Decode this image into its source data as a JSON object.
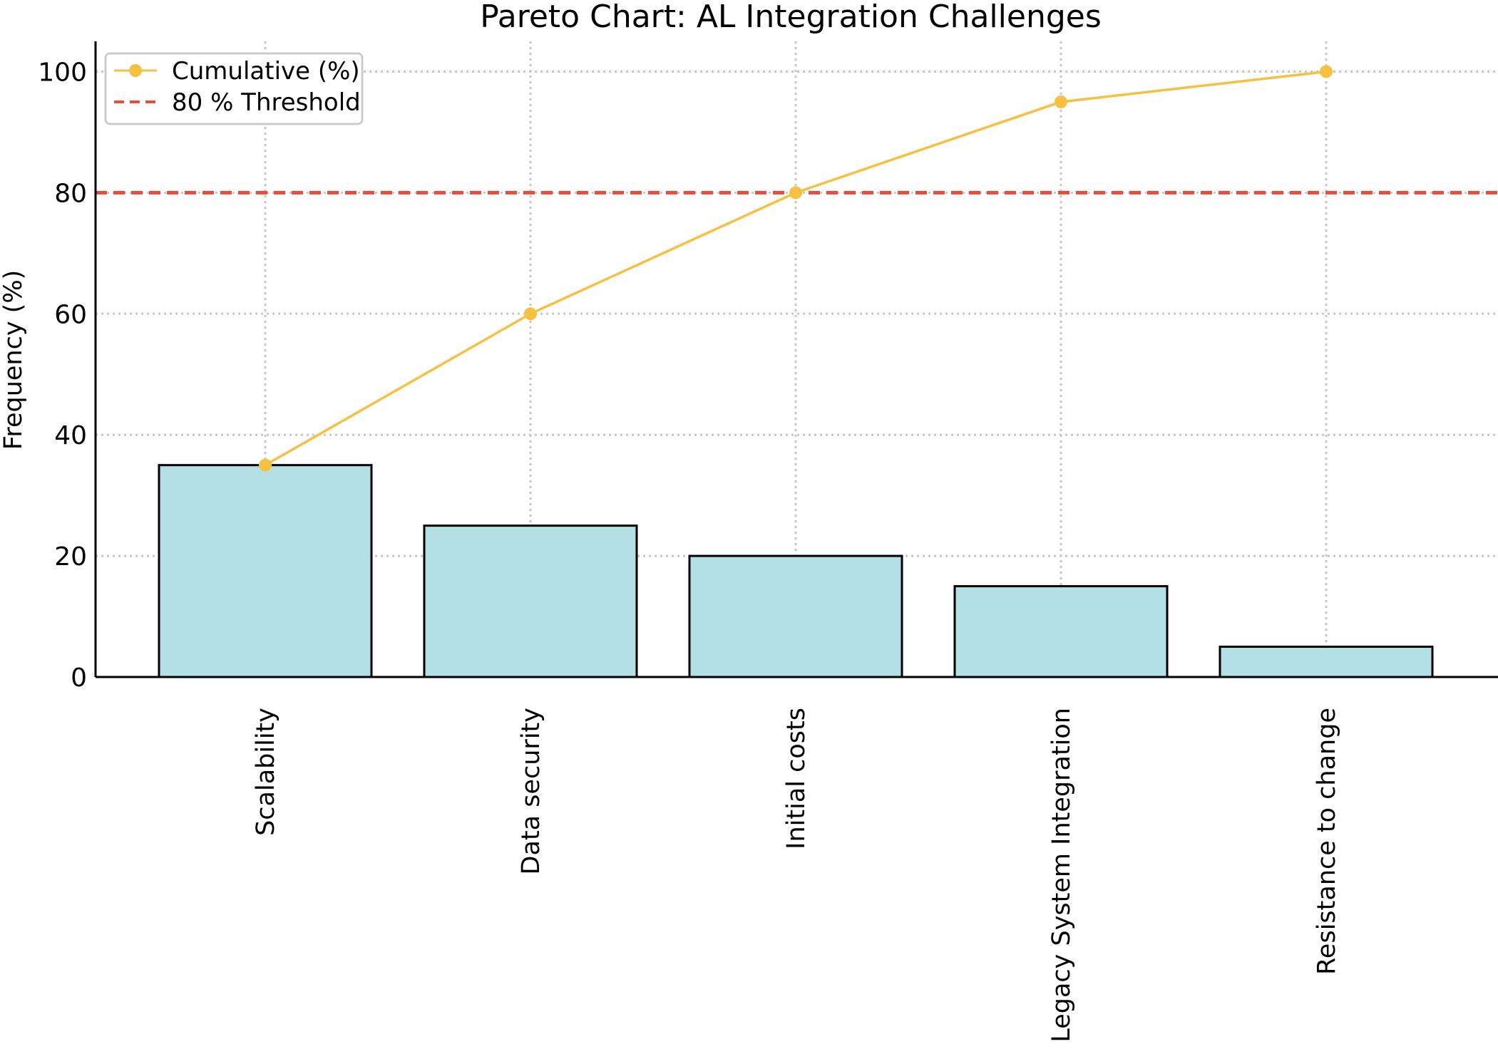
{
  "chart_data": {
    "type": "bar",
    "title": "Pareto Chart: AL Integration Challenges",
    "xlabel": "",
    "ylabel": "Frequency (%)",
    "ylim": [
      0,
      105
    ],
    "yticks": [
      0,
      20,
      40,
      60,
      80,
      100
    ],
    "ytick_labels": [
      "0",
      "20",
      "40",
      "60",
      "80",
      "100"
    ],
    "grid": true,
    "categories": [
      "Scalability",
      "Data security",
      "Initial costs",
      "Legacy System Integration",
      "Resistance to change"
    ],
    "series": [
      {
        "name": "Frequency (%)",
        "type": "bar",
        "values": [
          35,
          25,
          20,
          15,
          5
        ],
        "color": "#b4dfe4",
        "edge_color": "#000000"
      },
      {
        "name": "Cumulative (%)",
        "type": "line",
        "values": [
          35,
          60,
          80,
          95,
          100
        ],
        "color": "#f6c143"
      },
      {
        "name": "80 % Threshold",
        "type": "hline",
        "value": 80,
        "color": "#e84c3d",
        "style": "dashed"
      }
    ],
    "legend": {
      "position": "top-left",
      "entries": [
        "Cumulative (%)",
        "80 % Threshold"
      ]
    }
  }
}
